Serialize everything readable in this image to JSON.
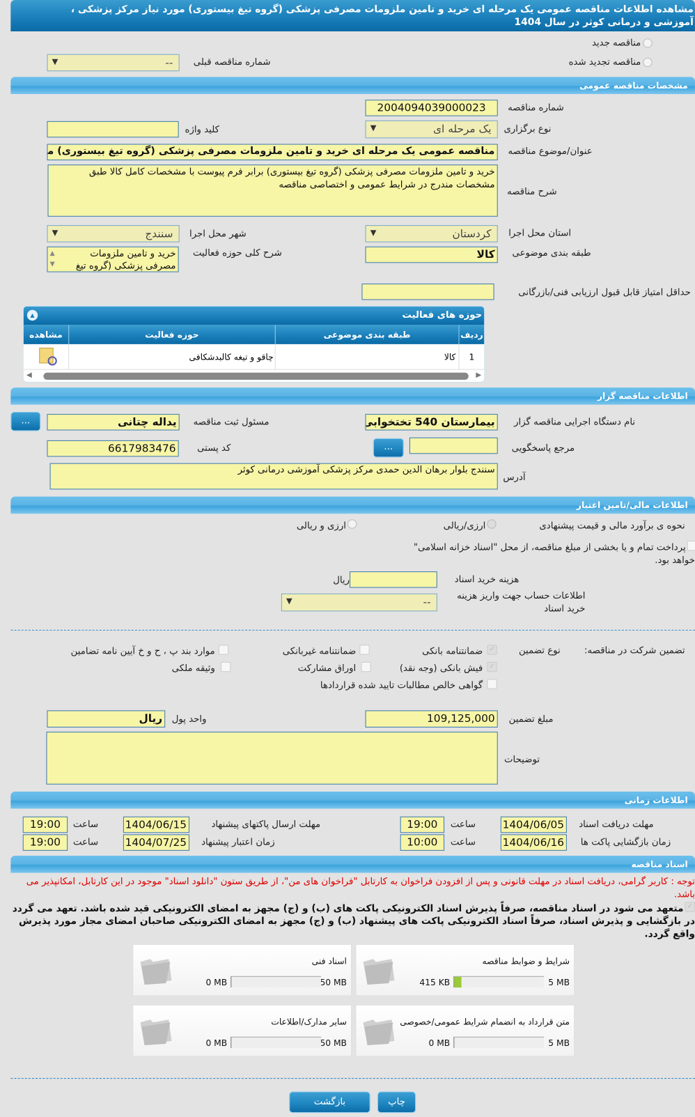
{
  "header": {
    "title": "مشاهده اطلاعات مناقصه عمومی یک مرحله ای خرید و تامین ملزومات مصرفی پزشکی (گروه تیغ بیستوری) مورد نیاز مرکز پزشکی ، آموزشی و درمانی کوثر در سال 1404"
  },
  "tender_type": {
    "new_label": "مناقصه جدید",
    "renewed_label": "مناقصه تجدید شده",
    "prev_number_label": "شماره مناقصه قبلی",
    "prev_number_value": "--"
  },
  "general": {
    "section_title": "مشخصات مناقصه عمومی",
    "number_label": "شماره مناقصه",
    "number_value": "2004094039000023",
    "holding_type_label": "نوع برگزاری",
    "holding_type_value": "یک مرحله ای",
    "keyword_label": "کلید واژه",
    "keyword_value": "",
    "subject_label": "عنوان/موضوع مناقصه",
    "subject_value": "مناقصه عمومی یک مرحله ای خرید و تامین ملزومات مصرفی پزشکی  (گروه تیغ بیستوری) مورد نیاز",
    "description_label": "شرح مناقصه",
    "description_value": "خرید و تامین ملزومات مصرفی پزشکی (گروه تیغ بیستوری) برابر فرم پیوست با مشخصات کامل کالا طبق مشخصات مندرج در شرایط عمومی و اختصاصی مناقصه",
    "province_label": "استان محل اجرا",
    "province_value": "کردستان",
    "city_label": "شهر محل اجرا",
    "city_value": "سنندج",
    "category_label": "طبقه بندی موضوعی",
    "category_value": "کالا",
    "activity_desc_label": "شرح کلی حوزه فعالیت",
    "activity_desc_value": "خرید و تامین ملزومات مصرفی پزشکی (گروه تیغ",
    "min_score_label": "حداقل امتیاز قابل قبول ارزیابی فنی/بازرگانی",
    "min_score_value": ""
  },
  "activities": {
    "title": "حوزه های فعالیت",
    "columns": [
      "ردیف",
      "طبقه بندی موضوعی",
      "حوزه فعالیت",
      "مشاهده"
    ],
    "rows": [
      {
        "index": "1",
        "category": "کالا",
        "field": "چاقو و تیغه کالبدشکافی"
      }
    ]
  },
  "organizer": {
    "section_title": "اطلاعات مناقصه گزار",
    "org_label": "نام دستگاه اجرایی مناقصه گزار",
    "org_value": "بیمارستان 540 تختخوابی کوثر",
    "officer_label": "مسئول ثبت مناقصه",
    "officer_value": "یداله چتانی",
    "ref_label": "مرجع پاسخگویی",
    "ref_value": "",
    "postal_label": "کد پستی",
    "postal_value": "6617983476",
    "address_label": "آدرس",
    "address_value": "سنندج بلوار برهان الدین حمدی مرکز پزشکی آموزشی درمانی کوثر",
    "more_button": "..."
  },
  "finance": {
    "section_title": "اطلاعات مالی/تامین اعتبار",
    "method_label": "نحوه ی برآورد مالی و قیمت پیشنهادی",
    "opt1": "ارزی/ریالی",
    "opt2": "ارزی و ریالی",
    "treasury_text": "پرداخت تمام و یا بخشی از مبلغ مناقصه، از محل \"اسناد خزانه اسلامی\"",
    "treasury_text2": "خواهد بود.",
    "doc_fee_label": "هزینه خرید اسناد",
    "doc_fee_value": "",
    "doc_fee_unit": "ریال",
    "account_label": "اطلاعات حساب جهت واریز هزینه خرید اسناد",
    "account_value": "--"
  },
  "guarantee": {
    "label": "تضمین شرکت در مناقصه:",
    "type_label": "نوع تضمین",
    "options": [
      {
        "label": "ضمانتنامه بانکی",
        "checked": true
      },
      {
        "label": "ضمانتنامه غیربانکی",
        "checked": false
      },
      {
        "label": "موارد بند پ ، ح و خ آیین نامه تضامین",
        "checked": false
      },
      {
        "label": "فیش بانکی (وجه نقد)",
        "checked": true
      },
      {
        "label": "اوراق مشارکت",
        "checked": false
      },
      {
        "label": "وثیقه ملکی",
        "checked": false
      },
      {
        "label": "گواهی خالص مطالبات تایید شده قراردادها",
        "checked": false
      }
    ],
    "amount_label": "مبلغ تضمین",
    "amount_value": "109,125,000",
    "currency_label": "واحد پول",
    "currency_value": "ریال",
    "notes_label": "توضیحات",
    "notes_value": ""
  },
  "timing": {
    "section_title": "اطلاعات زمانی",
    "time_label": "ساعت",
    "doc_deadline_label": "مهلت دریافت اسناد",
    "doc_deadline_date": "1404/06/05",
    "doc_deadline_time": "19:00",
    "submit_deadline_label": "مهلت ارسال پاکتهای پیشنهاد",
    "submit_deadline_date": "1404/06/15",
    "submit_deadline_time": "19:00",
    "opening_label": "زمان بازگشایی پاکت ها",
    "opening_date": "1404/06/16",
    "opening_time": "10:00",
    "validity_label": "زمان اعتبار پیشنهاد",
    "validity_date": "1404/07/25",
    "validity_time": "19:00"
  },
  "documents": {
    "section_title": "اسناد مناقصه",
    "notice": "توجه : کاربر گرامی، دریافت اسناد در مهلت قانونی و پس از افزودن فراخوان به کارتابل \"فراخوان های من\"، از طریق ستون \"دانلود اسناد\" موجود در این کارتابل، امکانپذیر می باشد.",
    "commitment": "متعهد می شود در اسناد مناقصه، صرفاً پذیرش اسناد الکترونیکی پاکت های (ب) و (ج) مجهز به امضای الکترونیکی قید شده باشد. تعهد می گردد در بازگشایی و پذیرش اسناد، صرفاً اسناد الکترونیکی پاکت های پیشنهاد (ب) و (ج) مجهز به امضای الکترونیکی صاحبان امضای مجاز مورد پذیرش واقع گردد.",
    "items": [
      {
        "title": "شرایط و ضوابط مناقصه",
        "current": "415 KB",
        "max": "5 MB",
        "fill_percent": 8
      },
      {
        "title": "اسناد فنی",
        "current": "0 MB",
        "max": "50 MB",
        "fill_percent": 0
      },
      {
        "title": "متن قرارداد به انضمام شرایط عمومی/خصوصی",
        "current": "0 MB",
        "max": "5 MB",
        "fill_percent": 0
      },
      {
        "title": "سایر مدارک/اطلاعات",
        "current": "0 MB",
        "max": "50 MB",
        "fill_percent": 0
      }
    ]
  },
  "actions": {
    "back": "بازگشت",
    "print": "چاپ"
  },
  "colors": {
    "header": "#1f86c0",
    "section": "#5ab3e4",
    "field": "#f7f5a6",
    "notice": "#e00000"
  }
}
